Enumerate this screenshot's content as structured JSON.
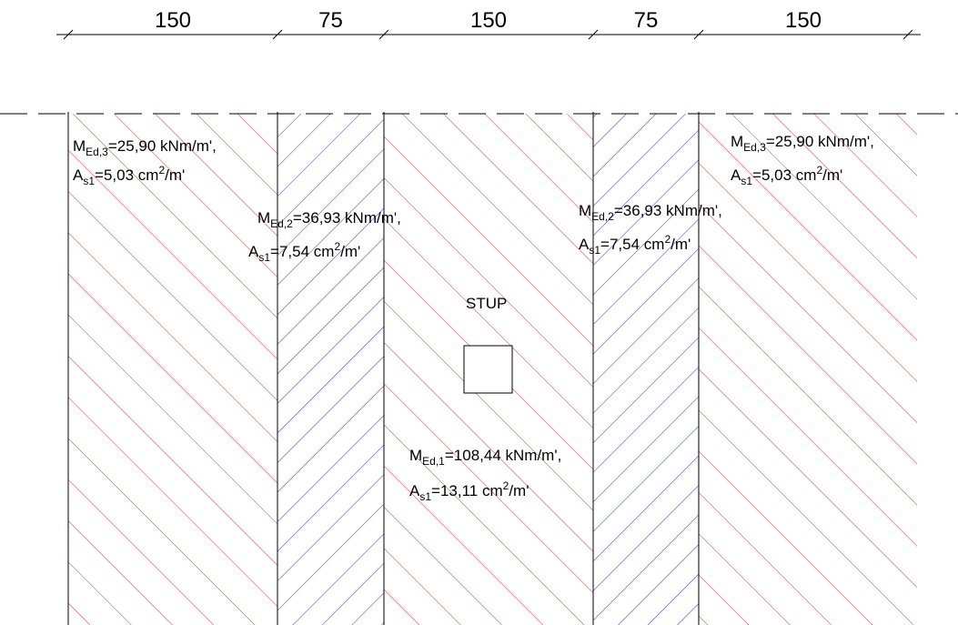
{
  "dimensions": [
    150,
    75,
    150,
    75,
    150
  ],
  "column_label": "STUP",
  "labels": [
    {
      "moment": {
        "symbol": "M",
        "subscript": "Ed,3",
        "value": "=25,90 kNm/m',"
      },
      "reinforcement": {
        "symbol": "A",
        "subscript": "s1",
        "value": "=5,03 cm",
        "superscript": "2",
        "unit": "/m'"
      }
    },
    {
      "moment": {
        "symbol": "M",
        "subscript": "Ed,2",
        "value": "=36,93 kNm/m',"
      },
      "reinforcement": {
        "symbol": "A",
        "subscript": "s1",
        "value": "=7,54 cm",
        "superscript": "2",
        "unit": "/m'"
      }
    },
    {
      "moment": {
        "symbol": "M",
        "subscript": "Ed,1",
        "value": "=108,44 kNm/m',"
      },
      "reinforcement": {
        "symbol": "A",
        "subscript": "s1",
        "value": "=13,11 cm",
        "superscript": "2",
        "unit": "/m'"
      }
    },
    {
      "moment": {
        "symbol": "M",
        "subscript": "Ed,2",
        "value": "=36,93 kNm/m',"
      },
      "reinforcement": {
        "symbol": "A",
        "subscript": "s1",
        "value": "=7,54 cm",
        "superscript": "2",
        "unit": "/m'"
      }
    },
    {
      "moment": {
        "symbol": "M",
        "subscript": "Ed,3",
        "value": "=25,90 kNm/m',"
      },
      "reinforcement": {
        "symbol": "A",
        "subscript": "s1",
        "value": "=5,03 cm",
        "superscript": "2",
        "unit": "/m'"
      }
    }
  ]
}
